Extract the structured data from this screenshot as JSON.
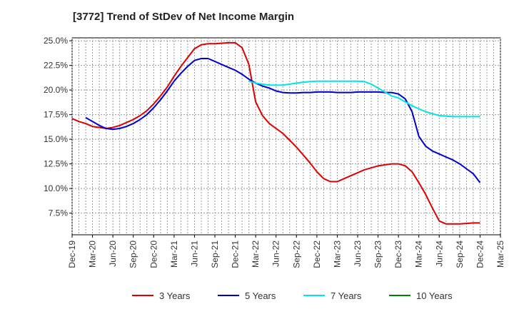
{
  "chart_data": {
    "type": "line",
    "title": "[3772]  Trend of StDev of Net Income Margin",
    "xlabel": "",
    "ylabel": "",
    "x_ticks": [
      "Dec-19",
      "Mar-20",
      "Jun-20",
      "Sep-20",
      "Dec-20",
      "Mar-21",
      "Jun-21",
      "Sep-21",
      "Dec-21",
      "Mar-22",
      "Jun-22",
      "Sep-22",
      "Dec-22",
      "Mar-23",
      "Jun-23",
      "Sep-23",
      "Dec-23",
      "Mar-24",
      "Jun-24",
      "Sep-24",
      "Dec-24",
      "Mar-25"
    ],
    "y_ticks": [
      "7.5%",
      "10.0%",
      "12.5%",
      "15.0%",
      "17.5%",
      "20.0%",
      "22.5%",
      "25.0%"
    ],
    "y_tick_values": [
      7.5,
      10.0,
      12.5,
      15.0,
      17.5,
      20.0,
      22.5,
      25.0
    ],
    "ylim": [
      5.3,
      25.3
    ],
    "grid": true,
    "legend_position": "bottom",
    "series": [
      {
        "name": "3 Years",
        "color": "#dd0000",
        "points": [
          [
            "Dec-19",
            17.1
          ],
          [
            "Jan-20",
            16.8
          ],
          [
            "Feb-20",
            16.6
          ],
          [
            "Mar-20",
            16.3
          ],
          [
            "Apr-20",
            16.2
          ],
          [
            "May-20",
            16.1
          ],
          [
            "Jun-20",
            16.2
          ],
          [
            "Jul-20",
            16.4
          ],
          [
            "Aug-20",
            16.7
          ],
          [
            "Sep-20",
            17.0
          ],
          [
            "Oct-20",
            17.4
          ],
          [
            "Nov-20",
            17.9
          ],
          [
            "Dec-20",
            18.6
          ],
          [
            "Jan-21",
            19.4
          ],
          [
            "Feb-21",
            20.3
          ],
          [
            "Mar-21",
            21.4
          ],
          [
            "Apr-21",
            22.4
          ],
          [
            "May-21",
            23.3
          ],
          [
            "Jun-21",
            24.2
          ],
          [
            "Jul-21",
            24.6
          ],
          [
            "Aug-21",
            24.7
          ],
          [
            "Sep-21",
            24.7
          ],
          [
            "Oct-21",
            24.75
          ],
          [
            "Nov-21",
            24.8
          ],
          [
            "Dec-21",
            24.8
          ],
          [
            "Jan-22",
            24.3
          ],
          [
            "Feb-22",
            22.6
          ],
          [
            "Mar-22",
            18.8
          ],
          [
            "Apr-22",
            17.4
          ],
          [
            "May-22",
            16.6
          ],
          [
            "Jun-22",
            16.1
          ],
          [
            "Jul-22",
            15.6
          ],
          [
            "Aug-22",
            14.9
          ],
          [
            "Sep-22",
            14.2
          ],
          [
            "Oct-22",
            13.4
          ],
          [
            "Nov-22",
            12.6
          ],
          [
            "Dec-22",
            11.7
          ],
          [
            "Jan-23",
            11.0
          ],
          [
            "Feb-23",
            10.7
          ],
          [
            "Mar-23",
            10.7
          ],
          [
            "Apr-23",
            11.0
          ],
          [
            "May-23",
            11.3
          ],
          [
            "Jun-23",
            11.6
          ],
          [
            "Jul-23",
            11.9
          ],
          [
            "Aug-23",
            12.1
          ],
          [
            "Sep-23",
            12.3
          ],
          [
            "Oct-23",
            12.4
          ],
          [
            "Nov-23",
            12.5
          ],
          [
            "Dec-23",
            12.5
          ],
          [
            "Jan-24",
            12.3
          ],
          [
            "Feb-24",
            11.7
          ],
          [
            "Mar-24",
            10.6
          ],
          [
            "Apr-24",
            9.4
          ],
          [
            "May-24",
            8.0
          ],
          [
            "Jun-24",
            6.7
          ],
          [
            "Jul-24",
            6.4
          ],
          [
            "Aug-24",
            6.4
          ],
          [
            "Sep-24",
            6.4
          ],
          [
            "Oct-24",
            6.45
          ],
          [
            "Nov-24",
            6.5
          ],
          [
            "Dec-24",
            6.5
          ]
        ]
      },
      {
        "name": "5 Years",
        "color": "#0000cc",
        "points": [
          [
            "Feb-20",
            17.2
          ],
          [
            "Mar-20",
            16.8
          ],
          [
            "Apr-20",
            16.4
          ],
          [
            "May-20",
            16.1
          ],
          [
            "Jun-20",
            16.0
          ],
          [
            "Jul-20",
            16.1
          ],
          [
            "Aug-20",
            16.3
          ],
          [
            "Sep-20",
            16.6
          ],
          [
            "Oct-20",
            17.0
          ],
          [
            "Nov-20",
            17.5
          ],
          [
            "Dec-20",
            18.2
          ],
          [
            "Jan-21",
            19.0
          ],
          [
            "Feb-21",
            19.9
          ],
          [
            "Mar-21",
            20.9
          ],
          [
            "Apr-21",
            21.7
          ],
          [
            "May-21",
            22.4
          ],
          [
            "Jun-21",
            23.0
          ],
          [
            "Jul-21",
            23.2
          ],
          [
            "Aug-21",
            23.2
          ],
          [
            "Sep-21",
            22.9
          ],
          [
            "Oct-21",
            22.6
          ],
          [
            "Nov-21",
            22.3
          ],
          [
            "Dec-21",
            22.0
          ],
          [
            "Jan-22",
            21.6
          ],
          [
            "Feb-22",
            21.1
          ],
          [
            "Mar-22",
            20.7
          ],
          [
            "Apr-22",
            20.4
          ],
          [
            "May-22",
            20.2
          ],
          [
            "Jun-22",
            19.9
          ],
          [
            "Jul-22",
            19.75
          ],
          [
            "Aug-22",
            19.7
          ],
          [
            "Sep-22",
            19.7
          ],
          [
            "Oct-22",
            19.75
          ],
          [
            "Nov-22",
            19.75
          ],
          [
            "Dec-22",
            19.8
          ],
          [
            "Jan-23",
            19.8
          ],
          [
            "Feb-23",
            19.8
          ],
          [
            "Mar-23",
            19.75
          ],
          [
            "Apr-23",
            19.75
          ],
          [
            "May-23",
            19.75
          ],
          [
            "Jun-23",
            19.8
          ],
          [
            "Jul-23",
            19.8
          ],
          [
            "Aug-23",
            19.8
          ],
          [
            "Sep-23",
            19.8
          ],
          [
            "Oct-23",
            19.75
          ],
          [
            "Nov-23",
            19.75
          ],
          [
            "Dec-23",
            19.6
          ],
          [
            "Jan-24",
            19.1
          ],
          [
            "Feb-24",
            17.8
          ],
          [
            "Mar-24",
            15.3
          ],
          [
            "Apr-24",
            14.3
          ],
          [
            "May-24",
            13.8
          ],
          [
            "Jun-24",
            13.5
          ],
          [
            "Jul-24",
            13.2
          ],
          [
            "Aug-24",
            12.9
          ],
          [
            "Sep-24",
            12.5
          ],
          [
            "Oct-24",
            12.0
          ],
          [
            "Nov-24",
            11.5
          ],
          [
            "Dec-24",
            10.6
          ]
        ]
      },
      {
        "name": "7 Years",
        "color": "#00e5e5",
        "points": [
          [
            "Feb-22",
            20.9
          ],
          [
            "Mar-22",
            20.7
          ],
          [
            "Apr-22",
            20.6
          ],
          [
            "May-22",
            20.5
          ],
          [
            "Jun-22",
            20.5
          ],
          [
            "Jul-22",
            20.5
          ],
          [
            "Aug-22",
            20.6
          ],
          [
            "Sep-22",
            20.7
          ],
          [
            "Oct-22",
            20.8
          ],
          [
            "Nov-22",
            20.85
          ],
          [
            "Dec-22",
            20.9
          ],
          [
            "Jan-23",
            20.9
          ],
          [
            "Feb-23",
            20.9
          ],
          [
            "Mar-23",
            20.9
          ],
          [
            "Apr-23",
            20.9
          ],
          [
            "May-23",
            20.9
          ],
          [
            "Jun-23",
            20.9
          ],
          [
            "Jul-23",
            20.85
          ],
          [
            "Aug-23",
            20.6
          ],
          [
            "Sep-23",
            20.2
          ],
          [
            "Oct-23",
            19.8
          ],
          [
            "Nov-23",
            19.4
          ],
          [
            "Dec-23",
            19.2
          ],
          [
            "Jan-24",
            18.8
          ],
          [
            "Feb-24",
            18.4
          ],
          [
            "Mar-24",
            18.1
          ],
          [
            "Apr-24",
            17.8
          ],
          [
            "May-24",
            17.6
          ],
          [
            "Jun-24",
            17.4
          ],
          [
            "Jul-24",
            17.35
          ],
          [
            "Aug-24",
            17.3
          ],
          [
            "Sep-24",
            17.3
          ],
          [
            "Oct-24",
            17.3
          ],
          [
            "Nov-24",
            17.3
          ],
          [
            "Dec-24",
            17.3
          ]
        ]
      },
      {
        "name": "10 Years",
        "color": "#008000",
        "points": []
      }
    ]
  }
}
